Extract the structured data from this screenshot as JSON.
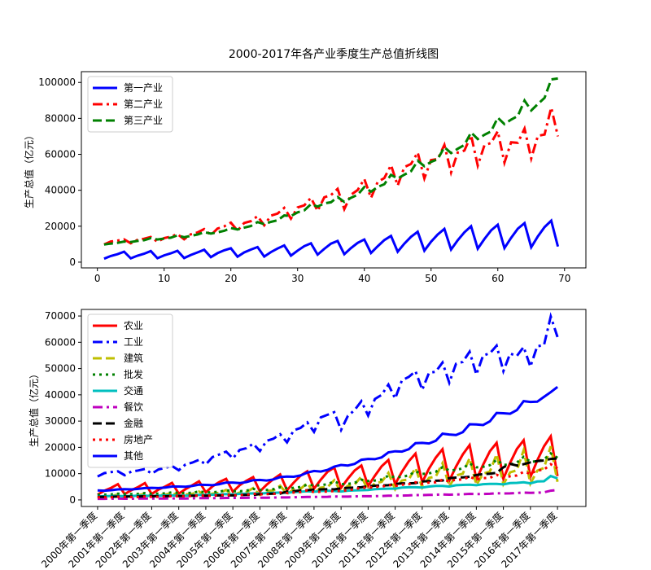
{
  "chart_data": [
    {
      "type": "line",
      "title": "2000-2017年各产业季度生产总值折线图",
      "ylabel": "生产总值（亿元）",
      "x": [
        1,
        2,
        3,
        4,
        5,
        6,
        7,
        8,
        9,
        10,
        11,
        12,
        13,
        14,
        15,
        16,
        17,
        18,
        19,
        20,
        21,
        22,
        23,
        24,
        25,
        26,
        27,
        28,
        29,
        30,
        31,
        32,
        33,
        34,
        35,
        36,
        37,
        38,
        39,
        40,
        41,
        42,
        43,
        44,
        45,
        46,
        47,
        48,
        49,
        50,
        51,
        52,
        53,
        54,
        55,
        56,
        57,
        58,
        59,
        60,
        61,
        62,
        63,
        64,
        65,
        66,
        67,
        68,
        69
      ],
      "xlim": [
        -2.4,
        73.2
      ],
      "xticks": [
        0,
        10,
        20,
        30,
        40,
        50,
        60,
        70
      ],
      "ylim": [
        -3200,
        106000
      ],
      "yticks": [
        0,
        20000,
        40000,
        60000,
        80000,
        100000
      ],
      "legend": "upper left",
      "series": [
        {
          "name": "第一产业",
          "color": "#0000ff",
          "linestyle": "solid",
          "values": [
            1900,
            3400,
            4400,
            5800,
            2100,
            3600,
            4700,
            6200,
            2200,
            3800,
            4900,
            6300,
            2300,
            4000,
            5400,
            6900,
            2800,
            5000,
            6600,
            7700,
            3000,
            5400,
            7000,
            8400,
            3100,
            5600,
            7600,
            9300,
            3600,
            6400,
            8900,
            10500,
            4200,
            7400,
            10300,
            11800,
            4400,
            7800,
            10700,
            12600,
            5100,
            8800,
            12300,
            14600,
            5800,
            10300,
            14100,
            16900,
            6400,
            11400,
            15400,
            18500,
            7000,
            12200,
            16600,
            20000,
            7500,
            12900,
            17700,
            20800,
            7800,
            13500,
            18600,
            21700,
            8300,
            14400,
            19500,
            23100,
            8700
          ]
        },
        {
          "name": "第二产业",
          "color": "#ff0000",
          "linestyle": "dashdot",
          "values": [
            9800,
            11500,
            12000,
            12700,
            10500,
            12400,
            13000,
            14000,
            11300,
            13400,
            14200,
            15600,
            12700,
            15500,
            16500,
            18400,
            15000,
            18700,
            19900,
            22000,
            17500,
            21800,
            22800,
            25600,
            20500,
            25900,
            27000,
            30200,
            24200,
            30400,
            31600,
            35800,
            28500,
            36100,
            37300,
            40800,
            29500,
            37500,
            40100,
            46300,
            35700,
            44600,
            46800,
            54000,
            42600,
            52900,
            54600,
            61000,
            46600,
            56800,
            57400,
            65200,
            49900,
            61000,
            62100,
            70600,
            53700,
            65100,
            66300,
            72900,
            55400,
            66700,
            66400,
            74300,
            57700,
            70300,
            71000,
            86000,
            70000
          ]
        },
        {
          "name": "第三产业",
          "color": "#008000",
          "linestyle": "dashed",
          "values": [
            9800,
            10300,
            10700,
            11500,
            11200,
            11800,
            12200,
            13400,
            12600,
            13100,
            13600,
            14900,
            13900,
            14600,
            15400,
            16700,
            15900,
            16600,
            17400,
            19000,
            18200,
            19200,
            20100,
            22300,
            21200,
            22400,
            23300,
            26000,
            25600,
            27700,
            28800,
            32300,
            30900,
            32700,
            33300,
            36200,
            33500,
            35800,
            37500,
            41800,
            39200,
            41800,
            43400,
            48600,
            46500,
            48700,
            50600,
            56400,
            53400,
            55800,
            57300,
            64000,
            60700,
            63100,
            65200,
            72200,
            68500,
            70900,
            72800,
            80400,
            76800,
            79300,
            81300,
            89900,
            84400,
            88000,
            91400,
            101700,
            102200
          ]
        }
      ]
    },
    {
      "type": "line",
      "ylabel": "生产总值（亿元）",
      "categories": [
        "2000年第一季度",
        null,
        null,
        null,
        "2001年第一季度",
        null,
        null,
        null,
        "2002年第一季度",
        null,
        null,
        null,
        "2003年第一季度",
        null,
        null,
        null,
        "2004年第一季度",
        null,
        null,
        null,
        "2005年第一季度",
        null,
        null,
        null,
        "2006年第一季度",
        null,
        null,
        null,
        "2007年第一季度",
        null,
        null,
        null,
        "2008年第一季度",
        null,
        null,
        null,
        "2009年第一季度",
        null,
        null,
        null,
        "2010年第一季度",
        null,
        null,
        null,
        "2011年第一季度",
        null,
        null,
        null,
        "2012年第一季度",
        null,
        null,
        null,
        "2013年第一季度",
        null,
        null,
        null,
        "2014年第一季度",
        null,
        null,
        null,
        "2015年第一季度",
        null,
        null,
        null,
        "2016年第一季度",
        null,
        null,
        null,
        "2017年第一季度"
      ],
      "ylim": [
        -2500,
        72500
      ],
      "yticks": [
        0,
        10000,
        20000,
        30000,
        40000,
        50000,
        60000,
        70000
      ],
      "legend": "upper left",
      "series": [
        {
          "name": "农业",
          "color": "#ff0000",
          "linestyle": "solid",
          "values": [
            2000,
            3500,
            4600,
            6000,
            2200,
            3700,
            4900,
            6400,
            2300,
            3900,
            5100,
            6500,
            2400,
            4100,
            5600,
            7100,
            2900,
            5200,
            6800,
            8000,
            3100,
            5600,
            7300,
            8700,
            3200,
            5800,
            7900,
            9700,
            3700,
            6600,
            9200,
            10900,
            4300,
            7700,
            10700,
            12300,
            4600,
            8100,
            11200,
            13100,
            5300,
            9200,
            12800,
            15200,
            6000,
            10700,
            14700,
            17600,
            6700,
            11900,
            16100,
            19300,
            7300,
            12700,
            17300,
            20900,
            7800,
            13400,
            18500,
            21700,
            8100,
            14100,
            19400,
            22700,
            8700,
            15000,
            20400,
            24200,
            9100
          ]
        },
        {
          "name": "工业",
          "color": "#0000ff",
          "linestyle": "dashdot",
          "values": [
            8900,
            10200,
            10600,
            10900,
            9400,
            10800,
            11200,
            11800,
            10000,
            11600,
            12200,
            12900,
            11300,
            13500,
            14200,
            15300,
            13500,
            16300,
            17300,
            18400,
            15800,
            19000,
            19700,
            21400,
            18600,
            22500,
            23300,
            25000,
            21900,
            26500,
            27400,
            29500,
            25900,
            31400,
            32400,
            33400,
            26600,
            32000,
            34200,
            37600,
            32100,
            38400,
            40000,
            43900,
            38600,
            45500,
            46800,
            49000,
            41900,
            48400,
            48800,
            52300,
            44600,
            51800,
            52500,
            56400,
            47700,
            55000,
            55800,
            58700,
            49000,
            55700,
            54800,
            58200,
            50700,
            58500,
            58900,
            69800,
            62000
          ]
        },
        {
          "name": "建筑",
          "color": "#bfbf00",
          "linestyle": "dashed",
          "values": [
            900,
            1300,
            1400,
            2100,
            1100,
            1600,
            1800,
            2300,
            1300,
            1800,
            2000,
            2700,
            1400,
            2100,
            2300,
            3200,
            1500,
            2400,
            2700,
            3800,
            1700,
            2800,
            3000,
            4500,
            1900,
            3400,
            3600,
            5400,
            2300,
            4000,
            4200,
            6400,
            2600,
            4700,
            4900,
            7500,
            2900,
            5400,
            5900,
            8900,
            3600,
            6400,
            6900,
            10300,
            4000,
            7400,
            7800,
            12200,
            4700,
            8400,
            8900,
            14000,
            5200,
            9300,
            10000,
            15900,
            5700,
            10000,
            10800,
            17400,
            6000,
            10500,
            11300,
            18900,
            6200,
            11100,
            12200,
            20400,
            6900
          ]
        },
        {
          "name": "批发",
          "color": "#008000",
          "linestyle": "dotted",
          "values": [
            2000,
            2000,
            2100,
            2400,
            2200,
            2200,
            2300,
            2600,
            2300,
            2400,
            2500,
            2900,
            2600,
            2600,
            2700,
            3200,
            2900,
            2900,
            3100,
            3700,
            3300,
            3300,
            3500,
            4200,
            3800,
            3800,
            4100,
            4800,
            4500,
            4600,
            4900,
            5800,
            5500,
            5600,
            6000,
            7000,
            6000,
            6100,
            6500,
            7700,
            7200,
            7400,
            7800,
            9200,
            8600,
            8800,
            9300,
            10900,
            9900,
            10100,
            10700,
            12500,
            11200,
            11400,
            12000,
            13900,
            12400,
            12600,
            13200,
            15300,
            13300,
            13500,
            14200,
            16400,
            14500,
            14700,
            15400,
            17700,
            16000
          ]
        },
        {
          "name": "交通",
          "color": "#00bfbf",
          "linestyle": "solid",
          "values": [
            1300,
            1400,
            1500,
            1500,
            1400,
            1500,
            1600,
            1600,
            1500,
            1600,
            1700,
            1700,
            1600,
            1600,
            1700,
            1900,
            1900,
            2000,
            2100,
            2200,
            2100,
            2300,
            2400,
            2500,
            2400,
            2600,
            2700,
            2800,
            2700,
            3000,
            3100,
            3300,
            3100,
            3400,
            3500,
            3400,
            3200,
            3500,
            3600,
            3700,
            3800,
            4100,
            4200,
            4300,
            4300,
            4700,
            4800,
            4800,
            4700,
            5100,
            5300,
            5300,
            5100,
            5600,
            5700,
            5800,
            5600,
            6000,
            6100,
            6100,
            5900,
            6400,
            6500,
            6700,
            6300,
            7000,
            7100,
            9100,
            8200
          ]
        },
        {
          "name": "餐饮",
          "color": "#bf00bf",
          "linestyle": "dashdot",
          "values": [
            400,
            400,
            450,
            500,
            450,
            450,
            500,
            550,
            500,
            500,
            550,
            600,
            550,
            550,
            600,
            650,
            650,
            650,
            700,
            750,
            750,
            750,
            800,
            850,
            850,
            850,
            900,
            950,
            950,
            1000,
            1050,
            1150,
            1150,
            1150,
            1200,
            1300,
            1250,
            1250,
            1300,
            1400,
            1400,
            1450,
            1500,
            1600,
            1600,
            1650,
            1700,
            1850,
            1850,
            1900,
            1950,
            2100,
            2000,
            2050,
            2150,
            2300,
            2200,
            2250,
            2350,
            2550,
            2450,
            2500,
            2600,
            2800,
            2700,
            2750,
            2900,
            3500,
            3800
          ]
        },
        {
          "name": "金融",
          "color": "#000000",
          "linestyle": "dashed",
          "values": [
            1200,
            1200,
            1200,
            1300,
            1300,
            1300,
            1300,
            1400,
            1400,
            1400,
            1400,
            1500,
            1500,
            1500,
            1600,
            1600,
            1600,
            1600,
            1700,
            1700,
            1700,
            1800,
            1900,
            1900,
            2200,
            2300,
            2400,
            2400,
            3200,
            3300,
            3600,
            3700,
            3900,
            4000,
            4100,
            4000,
            4400,
            4600,
            4700,
            4800,
            5200,
            5400,
            5500,
            5600,
            6100,
            6300,
            6300,
            6400,
            7000,
            7200,
            7300,
            7400,
            8300,
            8500,
            8600,
            8800,
            9500,
            9800,
            10000,
            10300,
            12400,
            13700,
            13100,
            13600,
            14300,
            14800,
            15000,
            15600,
            15800
          ]
        },
        {
          "name": "房地产",
          "color": "#ff0000",
          "linestyle": "dotted",
          "values": [
            1000,
            1000,
            1000,
            1200,
            1100,
            1100,
            1100,
            1300,
            1200,
            1200,
            1300,
            1500,
            1400,
            1400,
            1500,
            1700,
            1600,
            1700,
            1800,
            2000,
            1800,
            1900,
            2000,
            2400,
            2100,
            2200,
            2300,
            2800,
            2600,
            2800,
            3000,
            3600,
            3000,
            3100,
            3200,
            3400,
            3400,
            3700,
            4000,
            4700,
            4600,
            4900,
            5000,
            5700,
            5300,
            5800,
            6000,
            6700,
            6100,
            6600,
            6700,
            7700,
            7100,
            7700,
            7800,
            8800,
            7800,
            8300,
            8400,
            9600,
            8400,
            9000,
            9300,
            10700,
            10000,
            11200,
            11500,
            13600,
            12000
          ]
        },
        {
          "name": "其他",
          "color": "#0000ff",
          "linestyle": "solid",
          "values": [
            3600,
            3500,
            3700,
            4000,
            4100,
            4000,
            4200,
            4500,
            4600,
            4500,
            4700,
            5100,
            5100,
            5000,
            5300,
            5800,
            5700,
            5600,
            6000,
            6600,
            6600,
            6400,
            6800,
            7500,
            7600,
            7400,
            7800,
            8700,
            8900,
            8800,
            9300,
            10400,
            11000,
            10800,
            11400,
            12700,
            13300,
            13100,
            13700,
            15300,
            15600,
            15500,
            16200,
            18100,
            18500,
            18400,
            19300,
            21600,
            21700,
            21500,
            22500,
            25200,
            24900,
            24700,
            25800,
            28800,
            28700,
            28500,
            29900,
            33100,
            33000,
            32800,
            34200,
            37600,
            37300,
            37400,
            39200,
            41000,
            43000
          ]
        }
      ]
    }
  ]
}
